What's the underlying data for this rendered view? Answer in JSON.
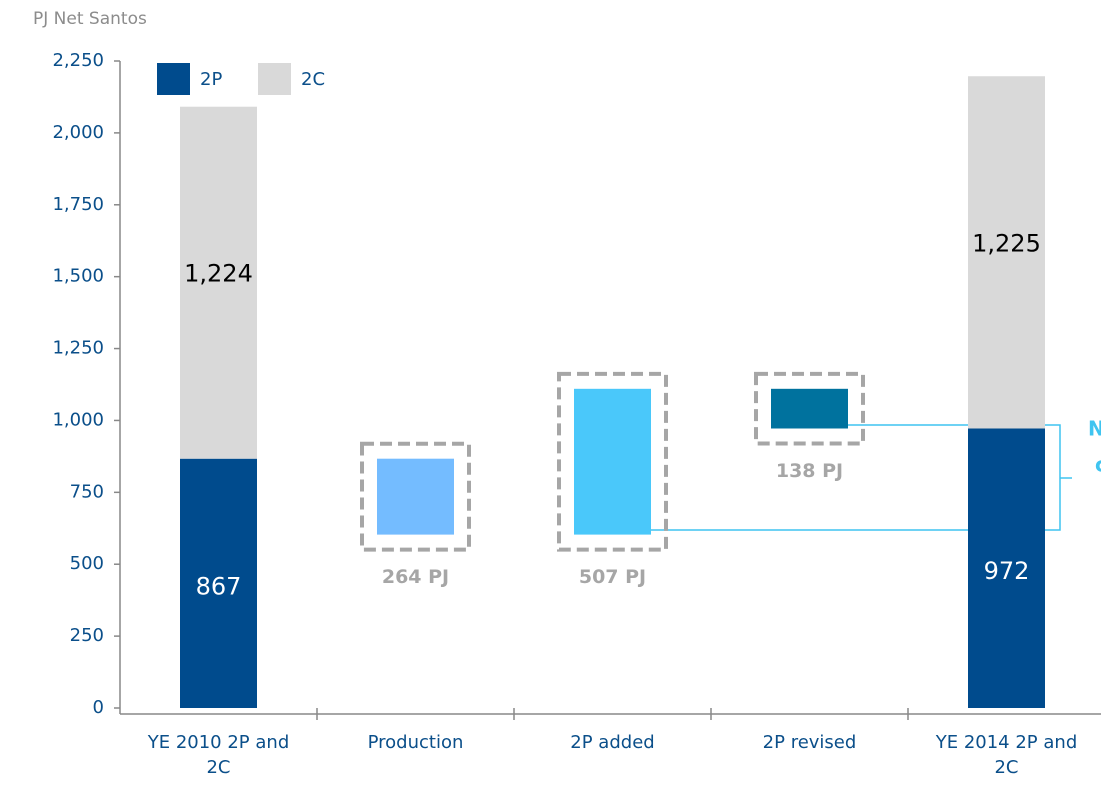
{
  "chart_data": {
    "type": "waterfall",
    "y_axis_label": "PJ Net Santos",
    "categories": [
      "YE 2010 2P and 2C",
      "Production",
      "2P added",
      "2P revised",
      "YE 2014 2P and 2C"
    ],
    "steps": [
      "total",
      "decrease",
      "increase",
      "decrease",
      "total"
    ],
    "series": [
      {
        "name": "2P",
        "color": "#004b8d",
        "step_colors": [
          "#004b8d",
          "#74bcff",
          "#4ac8fa",
          "#00729e",
          "#004b8d"
        ],
        "values": [
          867,
          264,
          507,
          138,
          972
        ],
        "value_labels": [
          "867",
          "264 PJ",
          "507 PJ",
          "138 PJ",
          "972"
        ]
      },
      {
        "name": "2C",
        "color": "#d9d9d9",
        "values": [
          1224,
          null,
          null,
          null,
          1225
        ],
        "value_labels": [
          "1,224",
          null,
          null,
          null,
          "1,225"
        ]
      }
    ],
    "ylim": [
      0,
      2250
    ],
    "yticks": [
      0,
      250,
      500,
      750,
      {
        "value": 1000,
        "label": "1,000"
      },
      {
        "value": 1250,
        "label": "1,250"
      },
      {
        "value": 1500,
        "label": "1,500"
      },
      {
        "value": 1750,
        "label": "1,750"
      },
      {
        "value": 2000,
        "label": "2,000"
      },
      {
        "value": 2250,
        "label": "2,250"
      }
    ],
    "annotation": [
      "N",
      "c"
    ]
  }
}
